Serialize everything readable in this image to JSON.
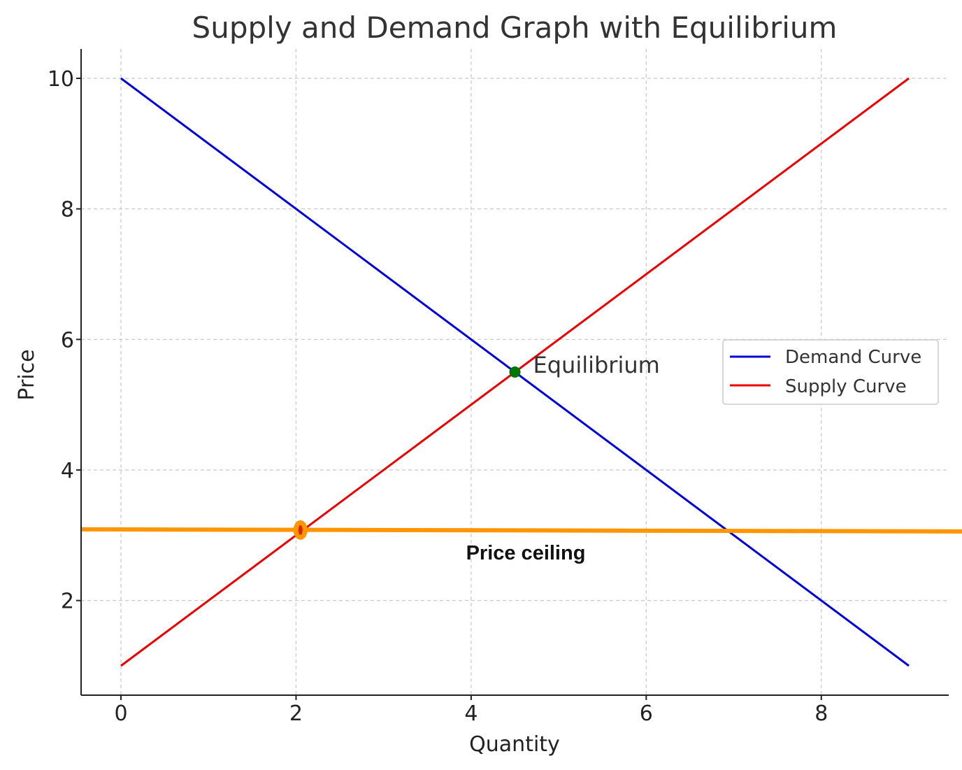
{
  "chart_data": {
    "type": "line",
    "title": "Supply and Demand Graph with Equilibrium",
    "xlabel": "Quantity",
    "ylabel": "Price",
    "xlim": [
      -0.45,
      9.45
    ],
    "ylim": [
      0.55,
      10.45
    ],
    "xticks": [
      0,
      2,
      4,
      6,
      8
    ],
    "yticks": [
      2,
      4,
      6,
      8,
      10
    ],
    "grid": true,
    "legend_position": "center-right",
    "series": [
      {
        "name": "Demand Curve",
        "color": "#0000dd",
        "x": [
          0,
          9
        ],
        "y": [
          10,
          1
        ]
      },
      {
        "name": "Supply Curve",
        "color": "#ee0000",
        "x": [
          0,
          9
        ],
        "y": [
          1,
          10
        ]
      }
    ],
    "equilibrium": {
      "x": 4.5,
      "y": 5.5,
      "label": "Equilibrium",
      "color": "#007700"
    },
    "price_ceiling": {
      "label": "Price ceiling",
      "y": 3.08,
      "color": "#ff9500",
      "marker_x": 2.05
    }
  }
}
